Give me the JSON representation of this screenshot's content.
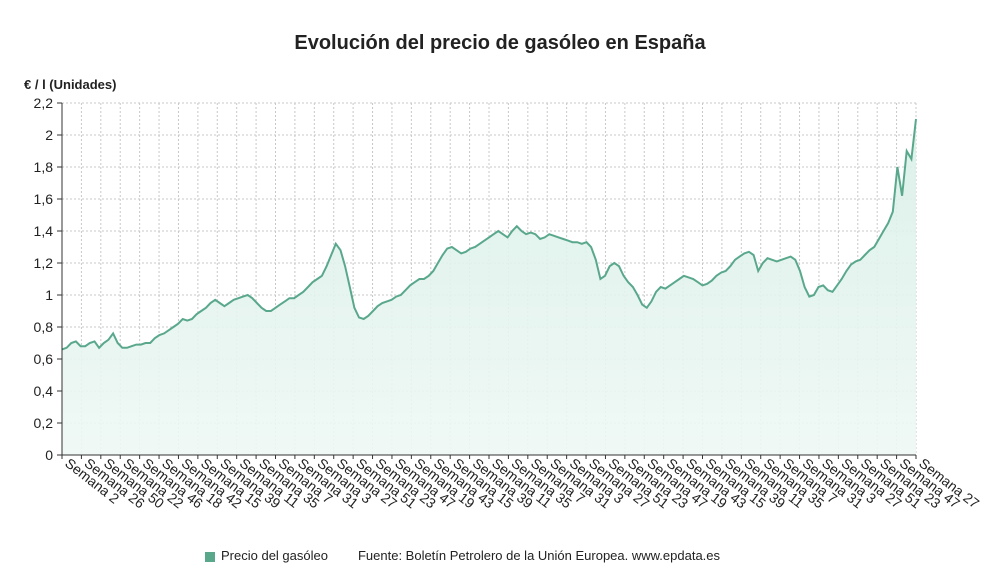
{
  "chart_data": {
    "type": "area",
    "title": "Evolución del precio de gasóleo en España",
    "ylabel": "€ / l (Unidades)",
    "ylim": [
      0,
      2.2
    ],
    "yticks": [
      "0",
      "0,2",
      "0,4",
      "0,6",
      "0,8",
      "1",
      "1,2",
      "1,4",
      "1,6",
      "1,8",
      "2",
      "2,2"
    ],
    "xtick_labels": [
      "Semana 2",
      "Semana 26",
      "Semana 50",
      "Semana 22",
      "Semana 46",
      "Semana 18",
      "Semana 42",
      "Semana 15",
      "Semana 39",
      "Semana 11",
      "Semana 35",
      "Semana 7",
      "Semana 31",
      "Semana 3",
      "Semana 27",
      "Semana 51",
      "Semana 23",
      "Semana 47",
      "Semana 19",
      "Semana 43",
      "Semana 15",
      "Semana 39",
      "Semana 11",
      "Semana 35",
      "Semana 7",
      "Semana 31",
      "Semana 3",
      "Semana 27",
      "Semana 51",
      "Semana 23",
      "Semana 47",
      "Semana 19",
      "Semana 43",
      "Semana 15",
      "Semana 39",
      "Semana 11",
      "Semana 35",
      "Semana 7",
      "Semana 31",
      "Semana 3",
      "Semana 27",
      "Semana 51",
      "Semana 23",
      "Semana 47",
      "Semana 27"
    ],
    "grid": true,
    "legend": "bottom",
    "series": [
      {
        "name": "Precio del gasóleo",
        "color": "#5aa88c",
        "values": [
          0.66,
          0.67,
          0.7,
          0.71,
          0.68,
          0.68,
          0.7,
          0.71,
          0.67,
          0.7,
          0.72,
          0.76,
          0.7,
          0.67,
          0.67,
          0.68,
          0.69,
          0.69,
          0.7,
          0.7,
          0.73,
          0.75,
          0.76,
          0.78,
          0.8,
          0.82,
          0.85,
          0.84,
          0.85,
          0.88,
          0.9,
          0.92,
          0.95,
          0.97,
          0.95,
          0.93,
          0.95,
          0.97,
          0.98,
          0.99,
          1.0,
          0.98,
          0.95,
          0.92,
          0.9,
          0.9,
          0.92,
          0.94,
          0.96,
          0.98,
          0.98,
          1.0,
          1.02,
          1.05,
          1.08,
          1.1,
          1.12,
          1.18,
          1.25,
          1.32,
          1.28,
          1.18,
          1.05,
          0.92,
          0.86,
          0.85,
          0.87,
          0.9,
          0.93,
          0.95,
          0.96,
          0.97,
          0.99,
          1.0,
          1.03,
          1.06,
          1.08,
          1.1,
          1.1,
          1.12,
          1.15,
          1.2,
          1.25,
          1.29,
          1.3,
          1.28,
          1.26,
          1.27,
          1.29,
          1.3,
          1.32,
          1.34,
          1.36,
          1.38,
          1.4,
          1.38,
          1.36,
          1.4,
          1.43,
          1.4,
          1.38,
          1.39,
          1.38,
          1.35,
          1.36,
          1.38,
          1.37,
          1.36,
          1.35,
          1.34,
          1.33,
          1.33,
          1.32,
          1.33,
          1.3,
          1.22,
          1.1,
          1.12,
          1.18,
          1.2,
          1.18,
          1.12,
          1.08,
          1.05,
          1.0,
          0.94,
          0.92,
          0.96,
          1.02,
          1.05,
          1.04,
          1.06,
          1.08,
          1.1,
          1.12,
          1.11,
          1.1,
          1.08,
          1.06,
          1.07,
          1.09,
          1.12,
          1.14,
          1.15,
          1.18,
          1.22,
          1.24,
          1.26,
          1.27,
          1.25,
          1.15,
          1.2,
          1.23,
          1.22,
          1.21,
          1.22,
          1.23,
          1.24,
          1.22,
          1.15,
          1.05,
          0.99,
          1.0,
          1.05,
          1.06,
          1.03,
          1.02,
          1.06,
          1.1,
          1.15,
          1.19,
          1.21,
          1.22,
          1.25,
          1.28,
          1.3,
          1.35,
          1.4,
          1.45,
          1.52,
          1.8,
          1.62,
          1.9,
          1.85,
          2.1
        ]
      }
    ]
  },
  "legend": {
    "label": "Precio del gasóleo"
  },
  "source": "Fuente: Boletín Petrolero de la Unión Europea. www.epdata.es"
}
